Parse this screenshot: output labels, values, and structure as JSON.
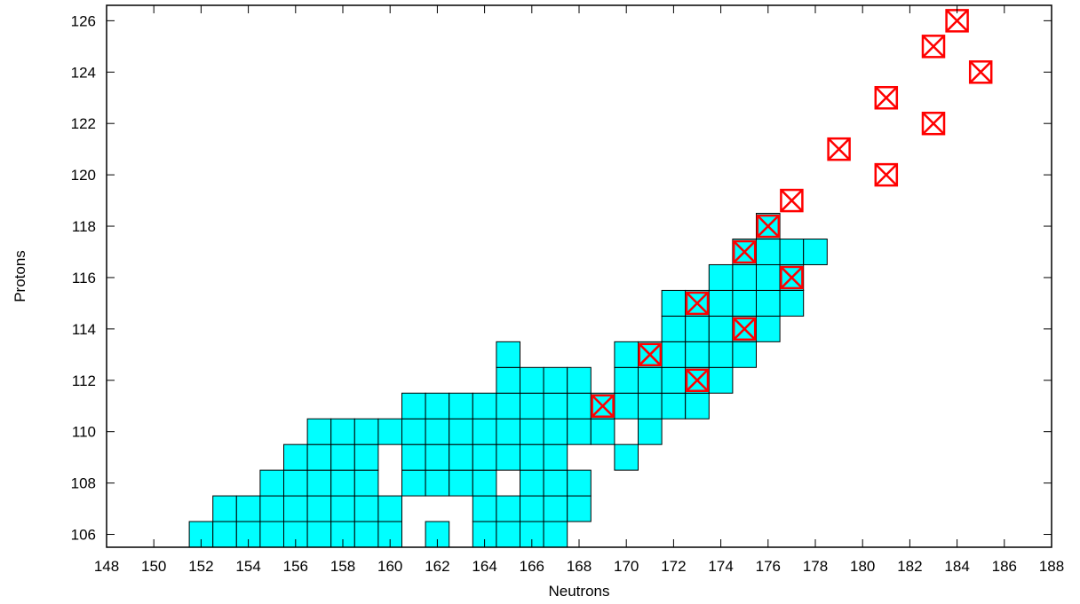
{
  "chart_data": {
    "type": "heatmap",
    "title": "",
    "xlabel": "Neutrons",
    "ylabel": "Protons",
    "xlim": [
      148,
      188
    ],
    "ylim": [
      105.5,
      126.6
    ],
    "x_ticks": [
      148,
      150,
      152,
      154,
      156,
      158,
      160,
      162,
      164,
      166,
      168,
      170,
      172,
      174,
      176,
      178,
      180,
      182,
      184,
      186,
      188
    ],
    "y_ticks": [
      106,
      108,
      110,
      112,
      114,
      116,
      118,
      120,
      122,
      124,
      126
    ],
    "grid": false,
    "colors": {
      "cell_fill": "#00ffff",
      "cell_stroke": "#000000",
      "marker": "#ff0000"
    },
    "series": [
      {
        "kind": "cyan-cells",
        "rows": [
          {
            "z": 106,
            "n": [
              152,
              153,
              154,
              155,
              156,
              157,
              158,
              159,
              160,
              162,
              164,
              165,
              166,
              167
            ]
          },
          {
            "z": 107,
            "n": [
              153,
              154,
              155,
              156,
              157,
              158,
              159,
              160,
              164,
              165,
              166,
              167,
              168
            ]
          },
          {
            "z": 108,
            "n": [
              155,
              156,
              157,
              158,
              159,
              161,
              162,
              163,
              164,
              166,
              167,
              168
            ]
          },
          {
            "z": 109,
            "n": [
              156,
              157,
              158,
              159,
              161,
              162,
              163,
              164,
              165,
              166,
              167,
              170
            ]
          },
          {
            "z": 110,
            "n": [
              157,
              158,
              159,
              160,
              161,
              162,
              163,
              164,
              165,
              166,
              167,
              168,
              169,
              171
            ]
          },
          {
            "z": 111,
            "n": [
              161,
              162,
              163,
              164,
              165,
              166,
              167,
              168,
              169,
              170,
              171,
              172,
              173
            ]
          },
          {
            "z": 112,
            "n": [
              165,
              166,
              167,
              168,
              170,
              171,
              172,
              173,
              174
            ]
          },
          {
            "z": 113,
            "n": [
              165,
              170,
              171,
              172,
              173,
              174,
              175
            ]
          },
          {
            "z": 114,
            "n": [
              172,
              173,
              174,
              175,
              176
            ]
          },
          {
            "z": 115,
            "n": [
              172,
              173,
              174,
              175,
              176,
              177
            ]
          },
          {
            "z": 116,
            "n": [
              174,
              175,
              176,
              177
            ]
          },
          {
            "z": 117,
            "n": [
              175,
              176,
              177,
              178
            ]
          },
          {
            "z": 118,
            "n": [
              176
            ]
          }
        ]
      },
      {
        "kind": "red-boxed-x-markers",
        "points": [
          [
            169,
            111
          ],
          [
            171,
            113
          ],
          [
            173,
            112
          ],
          [
            173,
            115
          ],
          [
            175,
            114
          ],
          [
            175,
            117
          ],
          [
            176,
            118
          ],
          [
            177,
            116
          ],
          [
            177,
            119
          ],
          [
            179,
            121
          ],
          [
            181,
            120
          ],
          [
            181,
            123
          ],
          [
            183,
            122
          ],
          [
            183,
            125
          ],
          [
            184,
            126
          ],
          [
            185,
            124
          ]
        ]
      }
    ]
  }
}
